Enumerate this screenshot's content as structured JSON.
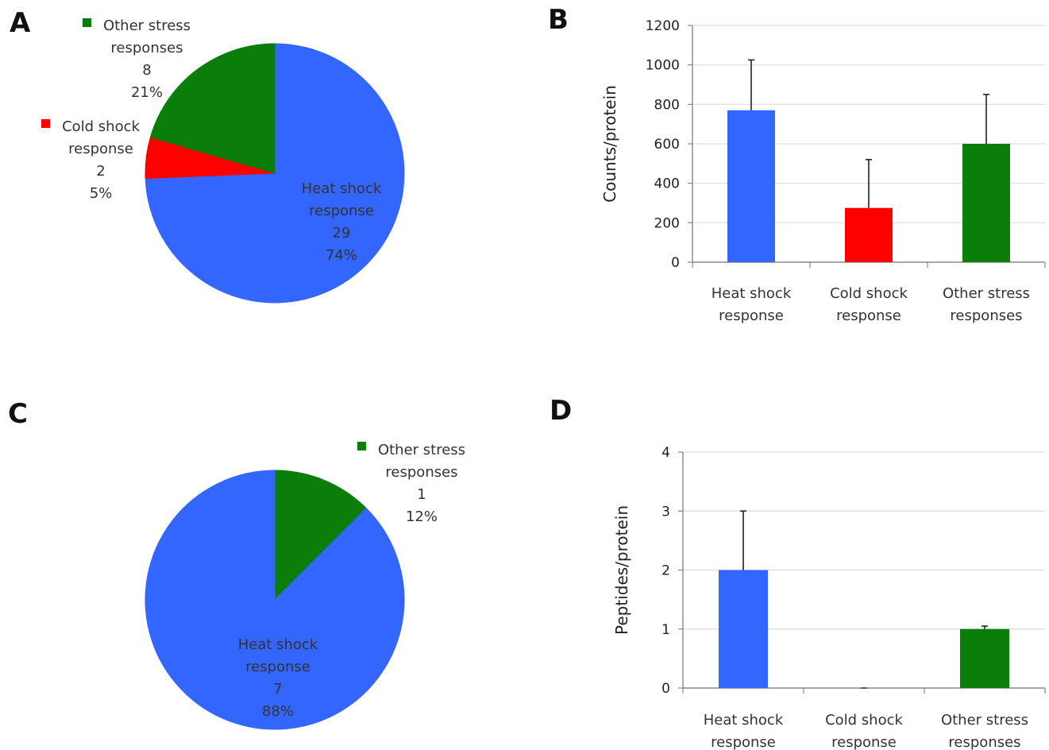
{
  "colors": {
    "heat": "#3366ff",
    "cold": "#ff0000",
    "other": "#0a7d0a",
    "axis": "#888888",
    "grid": "#dddddd"
  },
  "panels": {
    "a": "A",
    "b": "B",
    "c": "C",
    "d": "D"
  },
  "chart_data": [
    {
      "panel": "A",
      "type": "pie",
      "slices": [
        {
          "label": [
            "Heat shock",
            "response",
            "29",
            "74%"
          ],
          "value": 29,
          "percent": 74,
          "color": "heat"
        },
        {
          "label": [
            "Cold shock",
            "response",
            "2",
            "5%"
          ],
          "value": 2,
          "percent": 5,
          "color": "cold"
        },
        {
          "label": [
            "Other stress",
            "responses",
            "8",
            "21%"
          ],
          "value": 8,
          "percent": 21,
          "color": "other"
        }
      ]
    },
    {
      "panel": "B",
      "type": "bar",
      "categories": [
        [
          "Heat shock",
          "response"
        ],
        [
          "Cold shock",
          "response"
        ],
        [
          "Other stress",
          "responses"
        ]
      ],
      "values": [
        770,
        275,
        600
      ],
      "errors": [
        255,
        245,
        250
      ],
      "colors": [
        "heat",
        "cold",
        "other"
      ],
      "ylabel": "Counts/protein",
      "ylim": [
        0,
        1200
      ],
      "yticks": [
        0,
        200,
        400,
        600,
        800,
        1000,
        1200
      ],
      "grid": true
    },
    {
      "panel": "C",
      "type": "pie",
      "slices": [
        {
          "label": [
            "Heat shock",
            "response",
            "7",
            "88%"
          ],
          "value": 7,
          "percent": 88,
          "color": "heat"
        },
        {
          "label": [
            "Other stress",
            "responses",
            "1",
            "12%"
          ],
          "value": 1,
          "percent": 12,
          "color": "other"
        }
      ]
    },
    {
      "panel": "D",
      "type": "bar",
      "categories": [
        [
          "Heat shock",
          "response"
        ],
        [
          "Cold shock",
          "response"
        ],
        [
          "Other stress",
          "responses"
        ]
      ],
      "values": [
        2,
        0,
        1
      ],
      "errors": [
        1,
        0,
        0.05
      ],
      "colors": [
        "heat",
        "cold",
        "other"
      ],
      "ylabel": "Peptides/protein",
      "ylim": [
        0,
        4
      ],
      "yticks": [
        0,
        1,
        2,
        3,
        4
      ],
      "grid": true
    }
  ]
}
